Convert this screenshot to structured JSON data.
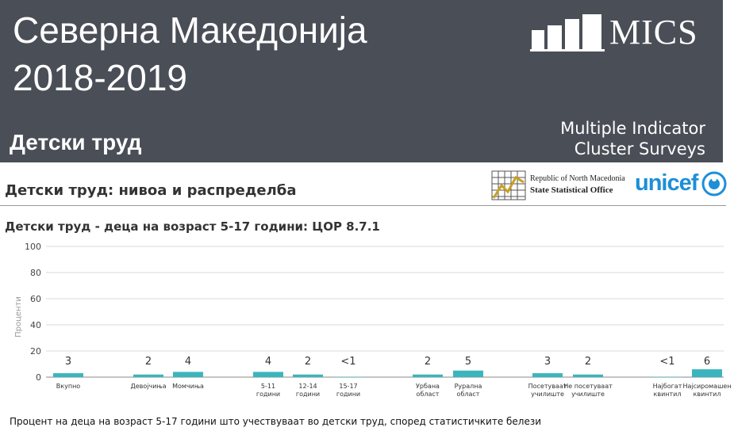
{
  "header": {
    "country": "Северна Македонија",
    "years": "2018-2019",
    "topic": "Детски труд",
    "brand": "MICS",
    "tagline_line1": "Multiple Indicator",
    "tagline_line2": "Cluster Surveys"
  },
  "section_title": "Детски труд: нивоа и распределба",
  "partners": {
    "sso_line1": "Republic of North Macedonia",
    "sso_line2": "State Statistical Office",
    "unicef": "unicef"
  },
  "colors": {
    "banner": "#4a4e57",
    "bar": "#3bb5bd",
    "grid": "#d9d9d9",
    "axis": "#888888"
  },
  "chart_data": {
    "type": "bar",
    "title": "Детски труд - деца на возраст 5-17 години: ЦОР 8.7.1",
    "ylabel": "Проценти",
    "ylim": [
      0,
      100
    ],
    "yticks": [
      0,
      20,
      40,
      60,
      80,
      100
    ],
    "grid": true,
    "bars": [
      {
        "label": [
          "Вкупно"
        ],
        "value": 3,
        "value_label": "3"
      },
      {
        "label": [
          "Девојчиња"
        ],
        "value": 2,
        "value_label": "2"
      },
      {
        "label": [
          "Момчиња"
        ],
        "value": 4,
        "value_label": "4"
      },
      {
        "label": [
          "5-11",
          "години"
        ],
        "value": 4,
        "value_label": "4"
      },
      {
        "label": [
          "12-14",
          "години"
        ],
        "value": 2,
        "value_label": "2"
      },
      {
        "label": [
          "15-17",
          "години"
        ],
        "value": 0.3,
        "value_label": "<1"
      },
      {
        "label": [
          "Урбана",
          "област"
        ],
        "value": 2,
        "value_label": "2"
      },
      {
        "label": [
          "Рурална",
          "област"
        ],
        "value": 5,
        "value_label": "5"
      },
      {
        "label": [
          "Посетуваат",
          "училиште"
        ],
        "value": 3,
        "value_label": "3"
      },
      {
        "label": [
          "Не посетуваат",
          "училиште"
        ],
        "value": 2,
        "value_label": "2"
      },
      {
        "label": [
          "Најбогат",
          "квинтил"
        ],
        "value": 0.3,
        "value_label": "<1"
      },
      {
        "label": [
          "Најсиромашен",
          "квинтил"
        ],
        "value": 6,
        "value_label": "6"
      }
    ]
  },
  "footnote": "Процент на деца на возраст 5-17 години што учествуваат во детски труд, според статистичките белези"
}
